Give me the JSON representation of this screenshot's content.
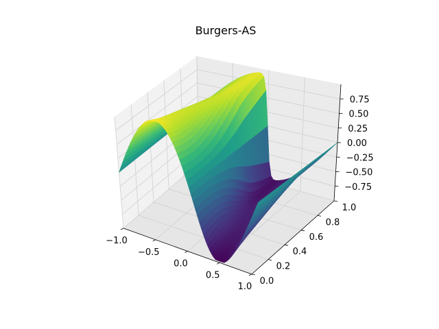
{
  "chart_data": {
    "type": "surface",
    "title": "Burgers-AS",
    "xlabel": "",
    "ylabel": "",
    "zlabel": "",
    "xlim": [
      -1.0,
      1.0
    ],
    "ylim": [
      0.0,
      1.0
    ],
    "zlim": [
      -1.0,
      1.0
    ],
    "x_ticks": [
      -1.0,
      -0.5,
      0.0,
      0.5,
      1.0
    ],
    "x_tick_labels": [
      "−1.0",
      "−0.5",
      "0.0",
      "0.5",
      "1.0"
    ],
    "y_ticks": [
      0.0,
      0.2,
      0.4,
      0.6,
      0.8,
      1.0
    ],
    "y_tick_labels": [
      "0.0",
      "0.2",
      "0.4",
      "0.6",
      "0.8",
      "1.0"
    ],
    "z_ticks": [
      -0.75,
      -0.5,
      -0.25,
      0.0,
      0.25,
      0.5,
      0.75
    ],
    "z_tick_labels": [
      "−0.75",
      "−0.50",
      "−0.25",
      "0.00",
      "0.25",
      "0.50",
      "0.75"
    ],
    "grid": true,
    "colormap": "viridis",
    "surface_function": "u(x,t) = -sin(pi*x) at t=0, steepening into a shock at x=0 as t increases (Burgers equation)",
    "sample_values": [
      {
        "x": -1.0,
        "t": 0.0,
        "u": 0.0
      },
      {
        "x": -0.5,
        "t": 0.0,
        "u": 1.0
      },
      {
        "x": 0.0,
        "t": 0.0,
        "u": 0.0
      },
      {
        "x": 0.5,
        "t": 0.0,
        "u": -1.0
      },
      {
        "x": 1.0,
        "t": 0.0,
        "u": 0.0
      },
      {
        "x": -0.05,
        "t": 1.0,
        "u": 0.7
      },
      {
        "x": 0.05,
        "t": 1.0,
        "u": -0.7
      },
      {
        "x": -1.0,
        "t": 1.0,
        "u": 0.0
      },
      {
        "x": 1.0,
        "t": 1.0,
        "u": 0.0
      }
    ]
  }
}
